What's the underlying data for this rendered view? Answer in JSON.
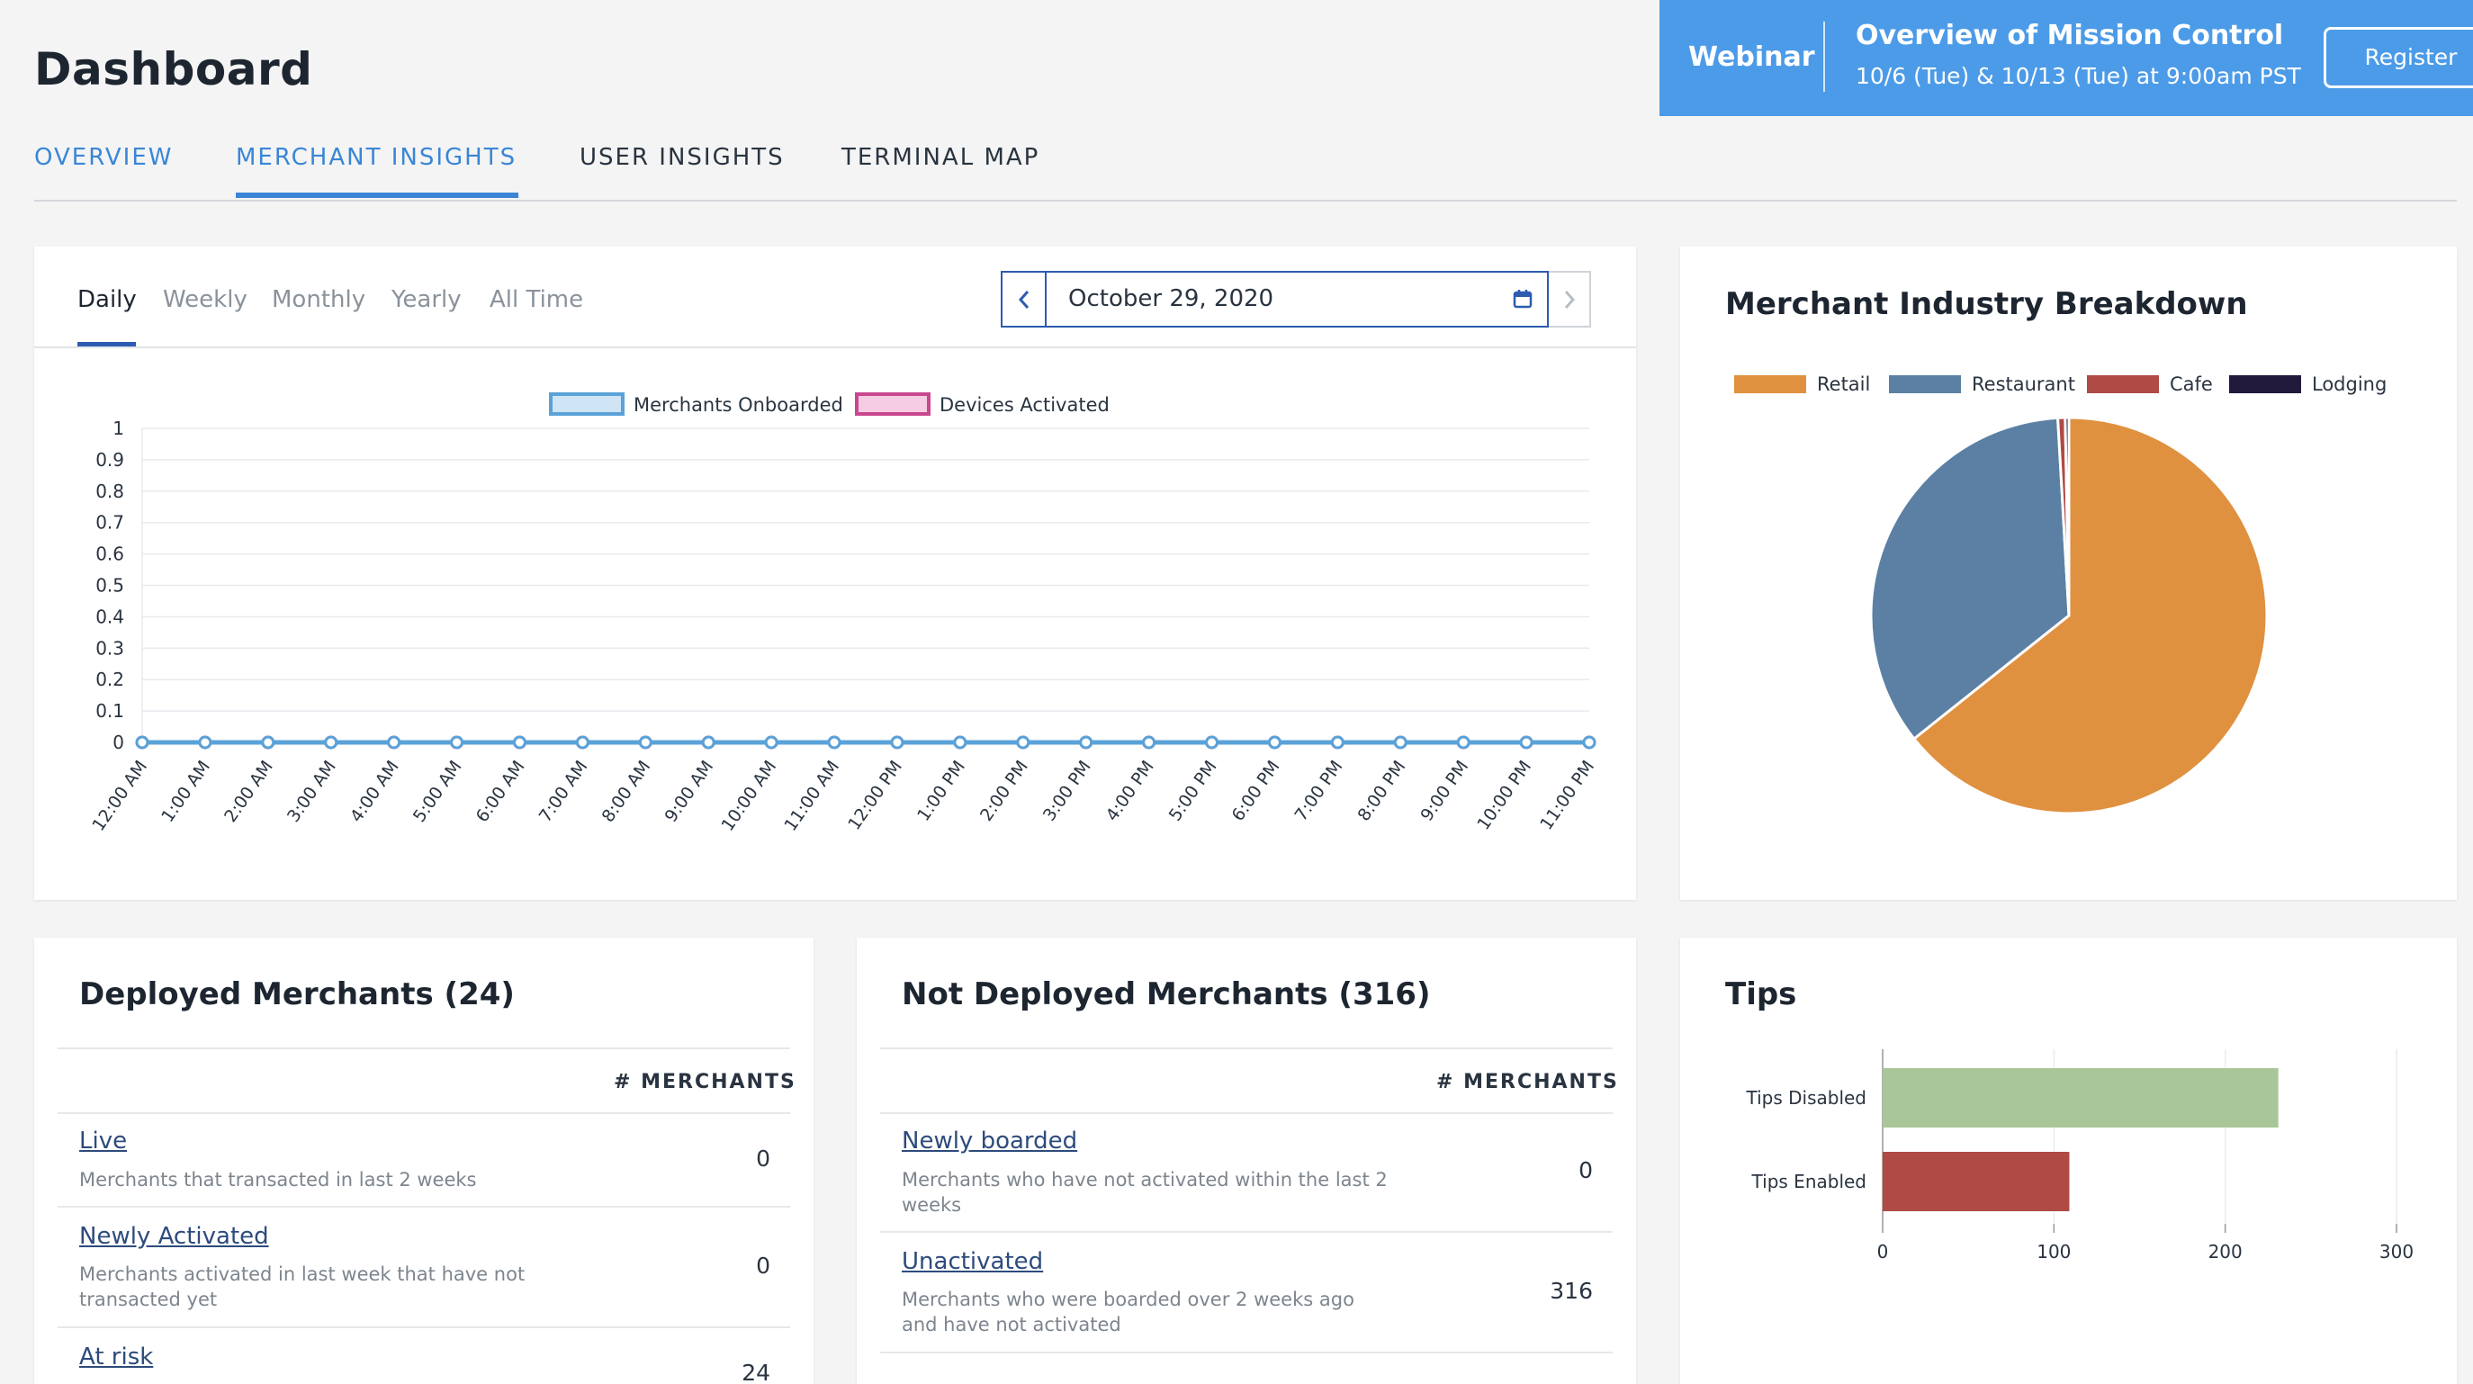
{
  "header": {
    "title": "Dashboard",
    "tabs": [
      "OVERVIEW",
      "MERCHANT INSIGHTS",
      "USER INSIGHTS",
      "TERMINAL MAP"
    ]
  },
  "banner": {
    "label": "Webinar",
    "title": "Overview of Mission Control",
    "subtitle": "10/6 (Tue) & 10/13 (Tue) at 9:00am PST",
    "button": "Register"
  },
  "activity_chart": {
    "periods": [
      "Daily",
      "Weekly",
      "Monthly",
      "Yearly",
      "All Time"
    ],
    "selected_period": "Daily",
    "date": "October 29, 2020"
  },
  "industry_card": {
    "title": "Merchant Industry Breakdown"
  },
  "deployed": {
    "title": "Deployed Merchants (24)",
    "column_header": "# MERCHANTS",
    "rows": [
      {
        "label": "Live",
        "desc": "Merchants that transacted in last 2 weeks",
        "value": "0"
      },
      {
        "label": "Newly Activated",
        "desc": "Merchants activated in last week that have not transacted yet",
        "value": "0"
      },
      {
        "label": "At risk",
        "desc": "",
        "value": "24"
      }
    ]
  },
  "not_deployed": {
    "title": "Not Deployed Merchants (316)",
    "column_header": "# MERCHANTS",
    "rows": [
      {
        "label": "Newly boarded",
        "desc": "Merchants who have not activated within the last 2 weeks",
        "value": "0"
      },
      {
        "label": "Unactivated",
        "desc": "Merchants who were boarded over 2 weeks ago and have not activated",
        "value": "316"
      }
    ]
  },
  "tips_card": {
    "title": "Tips"
  },
  "colors": {
    "accent": "#3a86d6",
    "banner": "#4c9be8",
    "retail": "#e0913f",
    "restaurant": "#5b80a3",
    "cafe": "#b04a45",
    "lodging": "#221a3d",
    "tips_disabled": "#a8c697",
    "tips_enabled": "#b04a45"
  },
  "chart_data": [
    {
      "type": "line",
      "title": "",
      "x": [
        "12:00 AM",
        "1:00 AM",
        "2:00 AM",
        "3:00 AM",
        "4:00 AM",
        "5:00 AM",
        "6:00 AM",
        "7:00 AM",
        "8:00 AM",
        "9:00 AM",
        "10:00 AM",
        "11:00 AM",
        "12:00 PM",
        "1:00 PM",
        "2:00 PM",
        "3:00 PM",
        "4:00 PM",
        "5:00 PM",
        "6:00 PM",
        "7:00 PM",
        "8:00 PM",
        "9:00 PM",
        "10:00 PM",
        "11:00 PM"
      ],
      "series": [
        {
          "name": "Merchants Onboarded",
          "values": [
            0,
            0,
            0,
            0,
            0,
            0,
            0,
            0,
            0,
            0,
            0,
            0,
            0,
            0,
            0,
            0,
            0,
            0,
            0,
            0,
            0,
            0,
            0,
            0
          ]
        },
        {
          "name": "Devices Activated",
          "values": [
            0,
            0,
            0,
            0,
            0,
            0,
            0,
            0,
            0,
            0,
            0,
            0,
            0,
            0,
            0,
            0,
            0,
            0,
            0,
            0,
            0,
            0,
            0,
            0
          ]
        }
      ],
      "yticks": [
        "0",
        "0.1",
        "0.2",
        "0.3",
        "0.4",
        "0.5",
        "0.6",
        "0.7",
        "0.8",
        "0.9",
        "1"
      ],
      "ylim": [
        0,
        1
      ],
      "grid": true,
      "legend": "top-center"
    },
    {
      "type": "pie",
      "title": "Merchant Industry Breakdown",
      "categories": [
        "Retail",
        "Restaurant",
        "Cafe",
        "Lodging"
      ],
      "values": [
        64.3,
        34.8,
        0.6,
        0.3
      ],
      "legend": "top"
    },
    {
      "type": "bar",
      "orientation": "horizontal",
      "title": "Tips",
      "categories": [
        "Tips Disabled",
        "Tips Enabled"
      ],
      "values": [
        231,
        109
      ],
      "xticks": [
        "0",
        "100",
        "200",
        "300"
      ],
      "xlim": [
        0,
        300
      ]
    }
  ]
}
